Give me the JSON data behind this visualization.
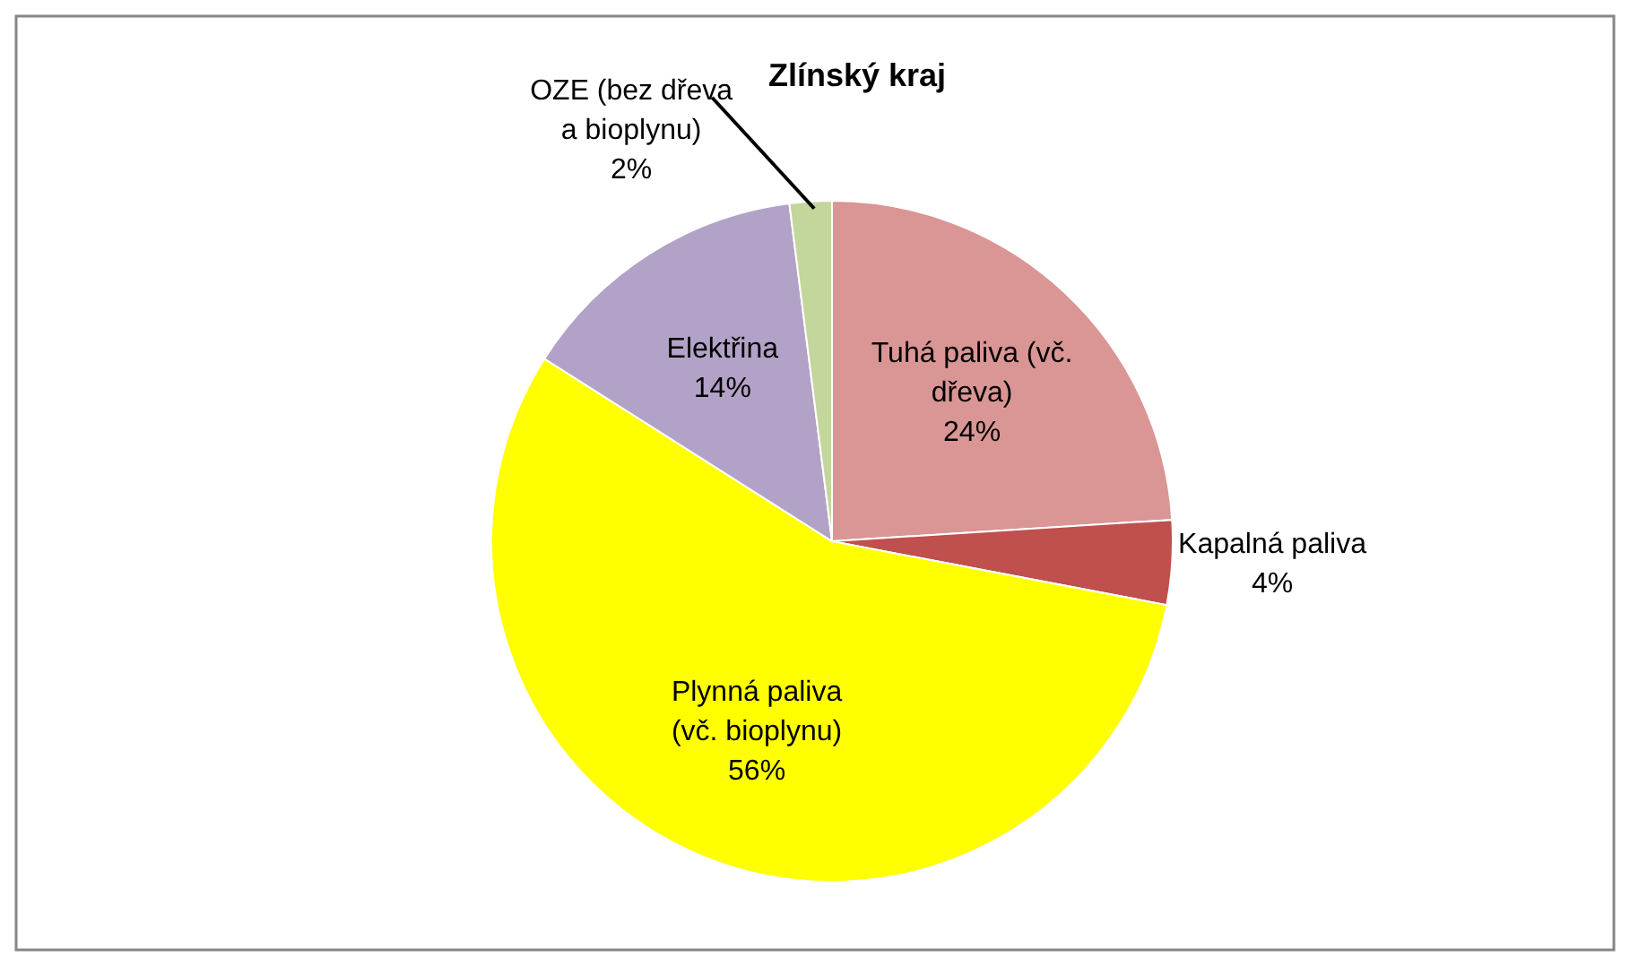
{
  "chart_data": {
    "type": "pie",
    "title": "Zlínský kraj",
    "categories": [
      "Tuhá paliva (vč. dřeva)",
      "Kapalná paliva",
      "Plynná paliva (vč. bioplynu)",
      "Elektřina",
      "OZE (bez dřeva a bioplynu)"
    ],
    "values": [
      24,
      4,
      56,
      14,
      2
    ],
    "value_labels": [
      "24%",
      "4%",
      "56%",
      "14%",
      "2%"
    ],
    "colors": [
      "#d99694",
      "#c0504d",
      "#ffff00",
      "#b3a2c7",
      "#c3d69b"
    ]
  }
}
